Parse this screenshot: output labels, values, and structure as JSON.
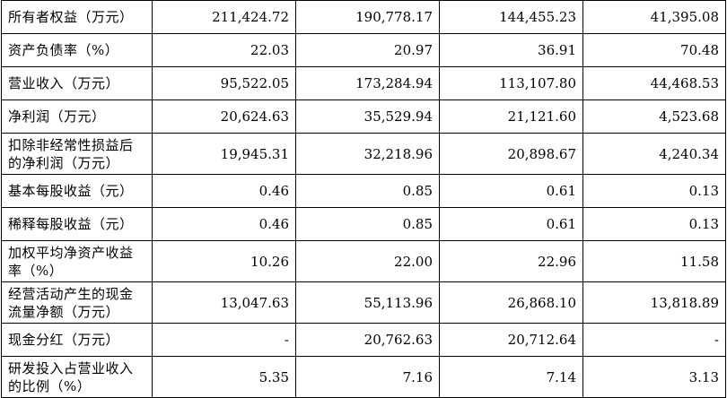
{
  "rows": [
    {
      "label": "所有者权益（万元）",
      "values": [
        "211,424.72",
        "190,778.17",
        "144,455.23",
        "41,395.08"
      ],
      "two_line": false
    },
    {
      "label": "资产负债率（%）",
      "values": [
        "22.03",
        "20.97",
        "36.91",
        "70.48"
      ],
      "two_line": false
    },
    {
      "label": "营业收入（万元）",
      "values": [
        "95,522.05",
        "173,284.94",
        "113,107.80",
        "44,468.53"
      ],
      "two_line": false
    },
    {
      "label": "净利润（万元）",
      "values": [
        "20,624.63",
        "35,529.94",
        "21,121.60",
        "4,523.68"
      ],
      "two_line": false
    },
    {
      "label": "扣除非经常性损益后的净利润（万元）",
      "values": [
        "19,945.31",
        "32,218.96",
        "20,898.67",
        "4,240.34"
      ],
      "two_line": true
    },
    {
      "label": "基本每股收益（元）",
      "values": [
        "0.46",
        "0.85",
        "0.61",
        "0.13"
      ],
      "two_line": false
    },
    {
      "label": "稀释每股收益（元）",
      "values": [
        "0.46",
        "0.85",
        "0.61",
        "0.13"
      ],
      "two_line": false
    },
    {
      "label": "加权平均净资产收益率（%）",
      "values": [
        "10.26",
        "22.00",
        "22.96",
        "11.58"
      ],
      "two_line": true
    },
    {
      "label": "经营活动产生的现金流量净额（万元）",
      "values": [
        "13,047.63",
        "55,113.96",
        "26,868.10",
        "13,818.89"
      ],
      "two_line": true
    },
    {
      "label": "现金分红（万元）",
      "values": [
        "-",
        "20,762.63",
        "20,712.64",
        "-"
      ],
      "two_line": false
    },
    {
      "label": "研发投入占营业收入的比例（%）",
      "values": [
        "5.35",
        "7.16",
        "7.14",
        "3.13"
      ],
      "two_line": true
    }
  ]
}
